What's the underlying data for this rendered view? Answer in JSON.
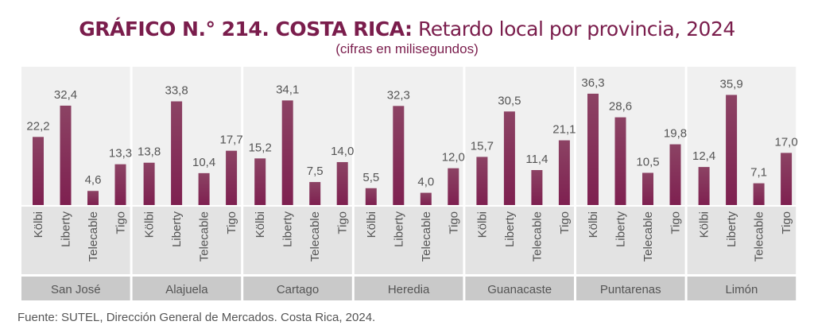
{
  "chart_data": {
    "type": "bar",
    "title_bold": "GRÁFICO N.° 214. COSTA RICA:",
    "title_rest": " Retardo local por provincia, 2024",
    "subtitle": "(cifras en milisegundos)",
    "providers": [
      "Kölbi",
      "Liberty",
      "Telecable",
      "Tigo"
    ],
    "groups": [
      {
        "name": "San José",
        "values": [
          22.2,
          32.4,
          4.6,
          13.3
        ],
        "labels": [
          "22,2",
          "32,4",
          "4,6",
          "13,3"
        ]
      },
      {
        "name": "Alajuela",
        "values": [
          13.8,
          33.8,
          10.4,
          17.7
        ],
        "labels": [
          "13,8",
          "33,8",
          "10,4",
          "17,7"
        ]
      },
      {
        "name": "Cartago",
        "values": [
          15.2,
          34.1,
          7.5,
          14.0
        ],
        "labels": [
          "15,2",
          "34,1",
          "7,5",
          "14,0"
        ]
      },
      {
        "name": "Heredia",
        "values": [
          5.5,
          32.3,
          4.0,
          12.0
        ],
        "labels": [
          "5,5",
          "32,3",
          "4,0",
          "12,0"
        ]
      },
      {
        "name": "Guanacaste",
        "values": [
          15.7,
          30.5,
          11.4,
          21.1
        ],
        "labels": [
          "15,7",
          "30,5",
          "11,4",
          "21,1"
        ]
      },
      {
        "name": "Puntarenas",
        "values": [
          36.3,
          28.6,
          10.5,
          19.8
        ],
        "labels": [
          "36,3",
          "28,6",
          "10,5",
          "19,8"
        ]
      },
      {
        "name": "Limón",
        "values": [
          12.4,
          35.9,
          7.1,
          17.0
        ],
        "labels": [
          "12,4",
          "35,9",
          "7,1",
          "17,0"
        ]
      }
    ],
    "ylim": [
      0,
      45
    ],
    "bar_color": "#7e2050"
  },
  "source": "Fuente: SUTEL, Dirección General de Mercados. Costa Rica, 2024."
}
